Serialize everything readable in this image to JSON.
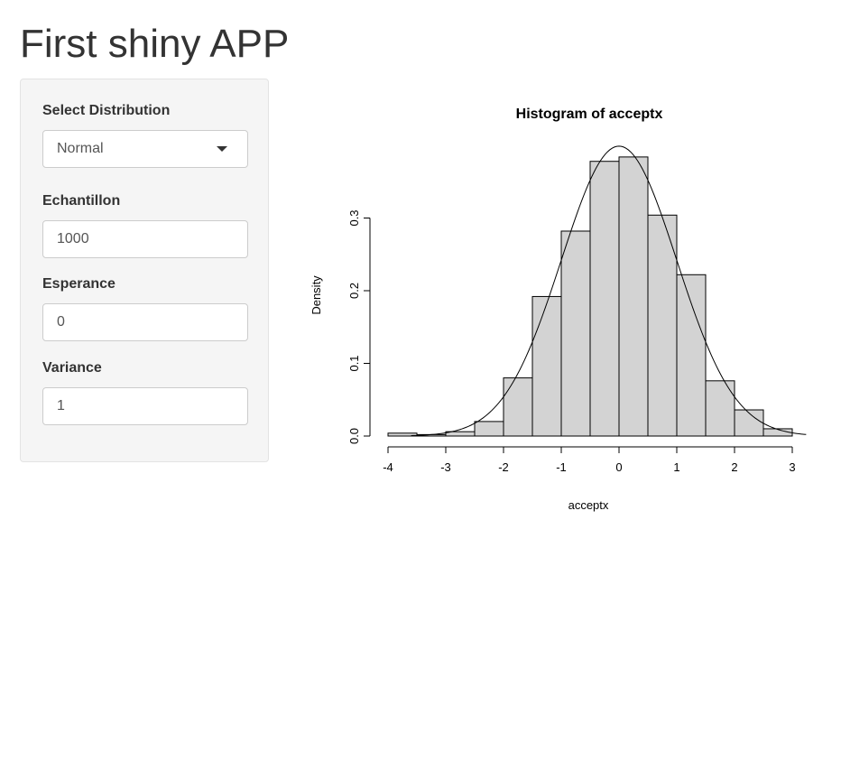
{
  "app": {
    "title": "First shiny APP"
  },
  "sidebar": {
    "distribution": {
      "label": "Select Distribution",
      "selected": "Normal"
    },
    "sample_size": {
      "label": "Echantillon",
      "value": "1000"
    },
    "mean": {
      "label": "Esperance",
      "value": "0"
    },
    "variance": {
      "label": "Variance",
      "value": "1"
    }
  },
  "chart_data": {
    "type": "bar",
    "title": "Histogram of acceptx",
    "xlabel": "acceptx",
    "ylabel": "Density",
    "bins": [
      {
        "x0": -4.0,
        "x1": -3.5,
        "density": 0.004
      },
      {
        "x0": -3.5,
        "x1": -3.0,
        "density": 0.002
      },
      {
        "x0": -3.0,
        "x1": -2.5,
        "density": 0.006
      },
      {
        "x0": -2.5,
        "x1": -2.0,
        "density": 0.02
      },
      {
        "x0": -2.0,
        "x1": -1.5,
        "density": 0.08
      },
      {
        "x0": -1.5,
        "x1": -1.0,
        "density": 0.192
      },
      {
        "x0": -1.0,
        "x1": -0.5,
        "density": 0.282
      },
      {
        "x0": -0.5,
        "x1": 0.0,
        "density": 0.378
      },
      {
        "x0": 0.0,
        "x1": 0.5,
        "density": 0.384
      },
      {
        "x0": 0.5,
        "x1": 1.0,
        "density": 0.304
      },
      {
        "x0": 1.0,
        "x1": 1.5,
        "density": 0.222
      },
      {
        "x0": 1.5,
        "x1": 2.0,
        "density": 0.076
      },
      {
        "x0": 2.0,
        "x1": 2.5,
        "density": 0.036
      },
      {
        "x0": 2.5,
        "x1": 3.0,
        "density": 0.01
      }
    ],
    "curve": {
      "type": "normal-density",
      "mean": 0,
      "sd": 1
    },
    "x_ticks": [
      "-4",
      "-3",
      "-2",
      "-1",
      "0",
      "1",
      "2",
      "3"
    ],
    "y_ticks": [
      "0.0",
      "0.1",
      "0.2",
      "0.3"
    ],
    "xlim": [
      -4,
      3
    ],
    "ylim": [
      0,
      0.3
    ],
    "bar_color": "#d3d3d3",
    "grid": false,
    "legend": "none"
  }
}
